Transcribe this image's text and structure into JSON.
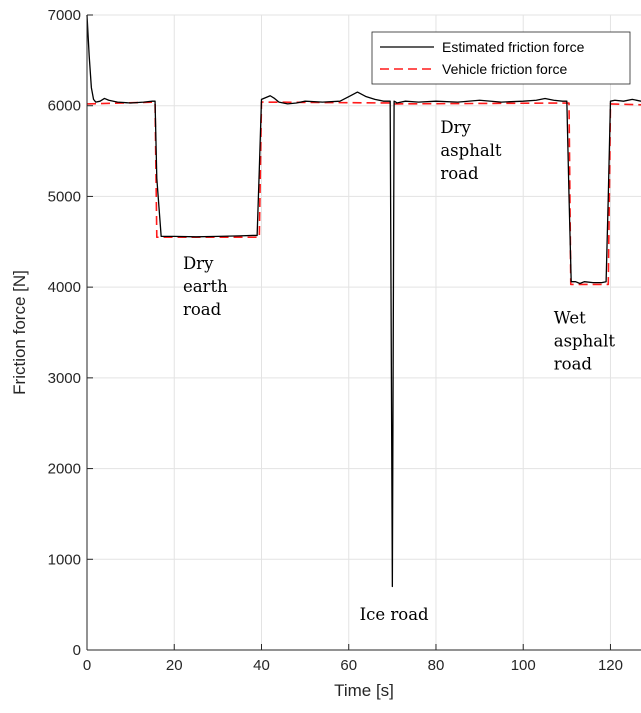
{
  "chart_data": {
    "type": "line",
    "xlabel": "Time [s]",
    "ylabel": "Friction force [N]",
    "xlim": [
      0,
      127
    ],
    "ylim": [
      0,
      7000
    ],
    "xticks": [
      0,
      20,
      40,
      60,
      80,
      100,
      120
    ],
    "yticks": [
      0,
      1000,
      2000,
      3000,
      4000,
      5000,
      6000,
      7000
    ],
    "grid": true,
    "legend_position": "top-right",
    "series": [
      {
        "name": "Estimated friction force",
        "color": "#000000",
        "dash": "solid",
        "x": [
          0,
          0.5,
          1,
          1.5,
          2,
          3,
          4,
          5,
          7,
          10,
          13,
          15,
          15.6,
          16,
          17,
          20,
          25,
          30,
          35,
          38,
          39,
          39.5,
          40,
          42,
          43,
          44,
          46,
          48,
          50,
          54,
          58,
          60,
          62,
          64,
          66,
          68,
          69.5,
          70,
          70.4,
          70.8,
          71,
          73,
          76,
          80,
          85,
          90,
          95,
          100,
          103,
          105,
          107,
          109,
          110,
          110.5,
          111,
          112,
          113,
          114,
          116,
          118,
          119,
          119.5,
          120,
          121,
          123,
          125,
          127
        ],
        "values": [
          7000,
          6550,
          6200,
          6070,
          6040,
          6050,
          6080,
          6060,
          6040,
          6030,
          6040,
          6050,
          6050,
          5200,
          4560,
          4560,
          4555,
          4560,
          4565,
          4570,
          4570,
          5300,
          6070,
          6110,
          6080,
          6040,
          6020,
          6030,
          6050,
          6040,
          6050,
          6100,
          6150,
          6100,
          6070,
          6050,
          6050,
          700,
          6050,
          6040,
          6030,
          6050,
          6040,
          6050,
          6040,
          6060,
          6040,
          6050,
          6060,
          6080,
          6060,
          6050,
          6050,
          5000,
          4060,
          4060,
          4040,
          4060,
          4050,
          4050,
          4060,
          5000,
          6050,
          6060,
          6050,
          6070,
          6050
        ]
      },
      {
        "name": "Vehicle friction force",
        "color": "#ff1a1a",
        "dash": "dashed",
        "x": [
          0,
          15.6,
          16,
          39.5,
          40,
          70,
          70.4,
          110.5,
          110.9,
          119.5,
          120,
          127
        ],
        "values": [
          6020,
          6040,
          4550,
          4550,
          6040,
          6030,
          6020,
          6030,
          4030,
          4030,
          6020,
          6010
        ]
      }
    ],
    "annotations": [
      {
        "lines": [
          "Dry",
          "earth",
          "road"
        ],
        "x": 22,
        "y": 4200
      },
      {
        "lines": [
          "Ice road"
        ],
        "x": 62.5,
        "y": 330
      },
      {
        "lines": [
          "Dry",
          "asphalt",
          "road"
        ],
        "x": 81,
        "y": 5700
      },
      {
        "lines": [
          "Wet",
          "asphalt",
          "road"
        ],
        "x": 107,
        "y": 3600
      }
    ]
  }
}
